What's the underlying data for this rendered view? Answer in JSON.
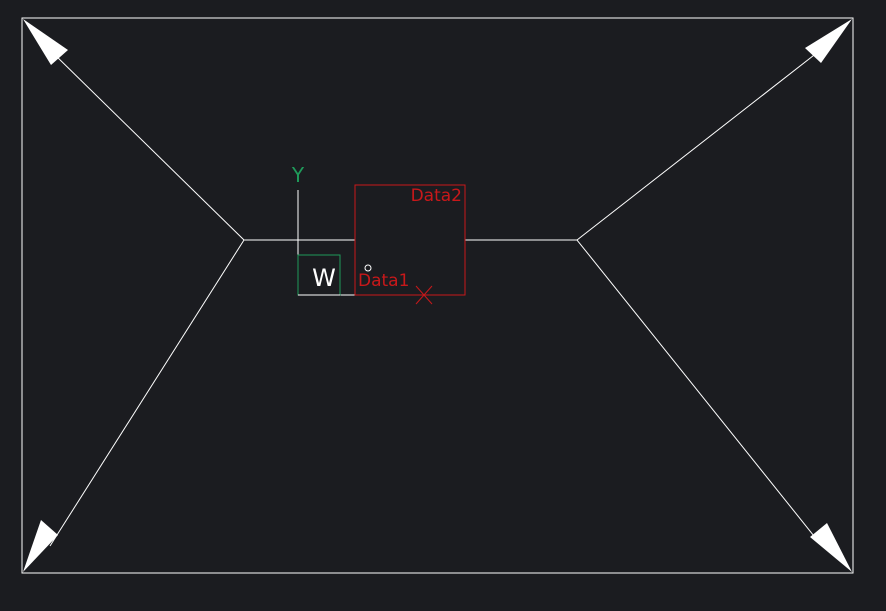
{
  "drawing": {
    "colors": {
      "background": "#1b1c20",
      "lines": "#ffffff",
      "data_objects": "#c8181a",
      "ucs_axis": "#1f9a5a"
    },
    "labels": {
      "data1": "Data1",
      "data2": "Data2"
    },
    "ucs": {
      "y_label": "Y",
      "w_label": "W"
    }
  }
}
